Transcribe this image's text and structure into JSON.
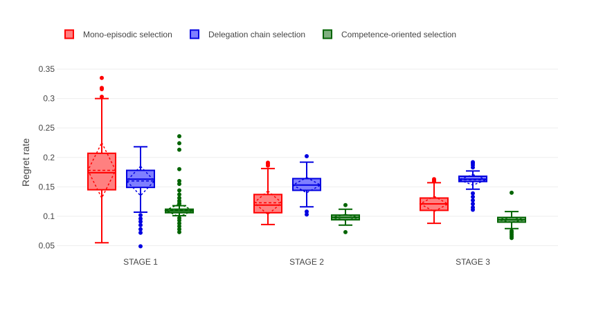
{
  "chart_data": {
    "type": "box",
    "ylabel": "Regret rate",
    "ylim": [
      0.045,
      0.355
    ],
    "yticks": [
      0.05,
      0.1,
      0.15,
      0.2,
      0.25,
      0.3,
      0.35
    ],
    "ytick_labels": [
      "0.05",
      "0.1",
      "0.15",
      "0.2",
      "0.25",
      "0.3",
      "0.35"
    ],
    "grid": true,
    "legend_position": "top",
    "categories": [
      "STAGE 1",
      "STAGE 2",
      "STAGE 3"
    ],
    "series": [
      {
        "name": "Mono-episodic selection",
        "color": "#ff0000",
        "fill": "#ff8080",
        "boxes": [
          {
            "lowerfence": 0.055,
            "q1": 0.145,
            "median": 0.174,
            "q3": 0.207,
            "upperfence": 0.3,
            "mean": 0.178,
            "sd": 0.047,
            "outliers": [
              0.303,
              0.316,
              0.318,
              0.335
            ]
          },
          {
            "lowerfence": 0.086,
            "q1": 0.106,
            "median": 0.119,
            "q3": 0.137,
            "upperfence": 0.181,
            "mean": 0.123,
            "sd": 0.02,
            "outliers": [
              0.186,
              0.189,
              0.191
            ]
          },
          {
            "lowerfence": 0.088,
            "q1": 0.11,
            "median": 0.121,
            "q3": 0.131,
            "upperfence": 0.157,
            "mean": 0.121,
            "sd": 0.013,
            "outliers": [
              0.159,
              0.161,
              0.163
            ]
          }
        ]
      },
      {
        "name": "Delegation chain selection",
        "color": "#0000e0",
        "fill": "#7f7fff",
        "boxes": [
          {
            "lowerfence": 0.107,
            "q1": 0.149,
            "median": 0.163,
            "q3": 0.178,
            "upperfence": 0.218,
            "mean": 0.16,
            "sd": 0.025,
            "outliers": [
              0.049,
              0.072,
              0.078,
              0.085,
              0.091,
              0.096,
              0.102
            ]
          },
          {
            "lowerfence": 0.116,
            "q1": 0.144,
            "median": 0.153,
            "q3": 0.164,
            "upperfence": 0.192,
            "mean": 0.153,
            "sd": 0.013,
            "outliers": [
              0.103,
              0.108,
              0.202
            ]
          },
          {
            "lowerfence": 0.146,
            "q1": 0.159,
            "median": 0.163,
            "q3": 0.168,
            "upperfence": 0.177,
            "mean": 0.162,
            "sd": 0.009,
            "outliers": [
              0.111,
              0.115,
              0.121,
              0.127,
              0.133,
              0.139,
              0.183,
              0.187,
              0.19,
              0.192
            ]
          }
        ]
      },
      {
        "name": "Competence-oriented selection",
        "color": "#006400",
        "fill": "#80b080",
        "boxes": [
          {
            "lowerfence": 0.101,
            "q1": 0.106,
            "median": 0.109,
            "q3": 0.112,
            "upperfence": 0.118,
            "mean": 0.11,
            "sd": 0.011,
            "outliers": [
              0.073,
              0.078,
              0.083,
              0.088,
              0.093,
              0.097,
              0.122,
              0.126,
              0.131,
              0.137,
              0.144,
              0.155,
              0.16,
              0.18,
              0.213,
              0.224,
              0.236
            ]
          },
          {
            "lowerfence": 0.085,
            "q1": 0.094,
            "median": 0.098,
            "q3": 0.102,
            "upperfence": 0.112,
            "mean": 0.098,
            "sd": 0.005,
            "outliers": [
              0.073,
              0.119
            ]
          },
          {
            "lowerfence": 0.079,
            "q1": 0.09,
            "median": 0.094,
            "q3": 0.098,
            "upperfence": 0.108,
            "mean": 0.094,
            "sd": 0.004,
            "outliers": [
              0.063,
              0.066,
              0.069,
              0.072,
              0.075,
              0.14
            ]
          }
        ]
      }
    ]
  }
}
